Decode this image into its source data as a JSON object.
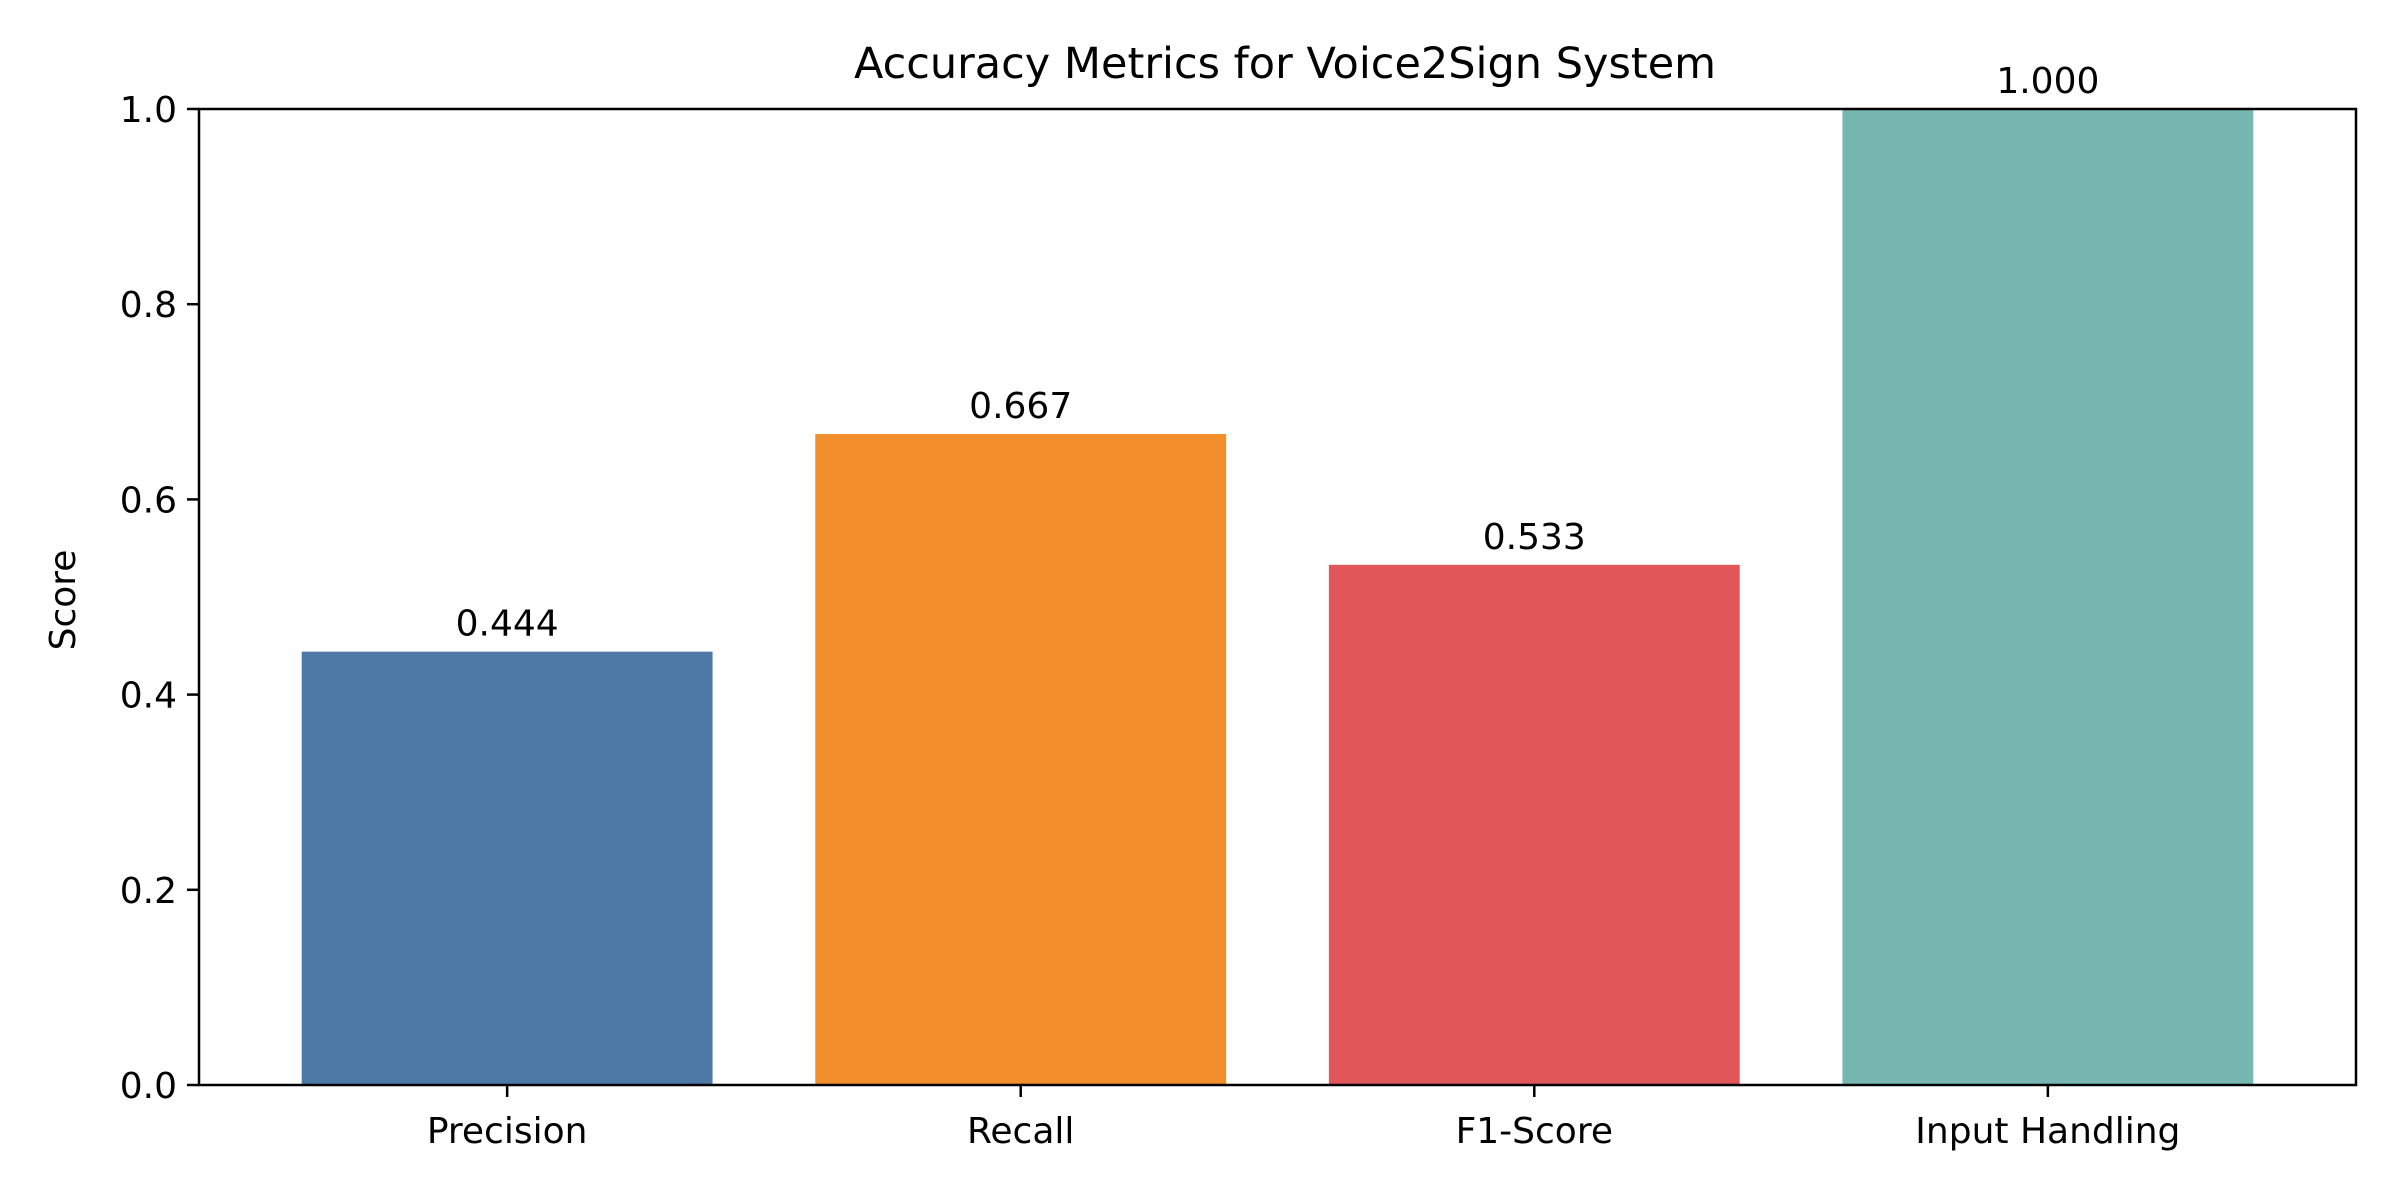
{
  "chart_data": {
    "type": "bar",
    "title": "Accuracy Metrics for Voice2Sign System",
    "xlabel": "",
    "ylabel": "Score",
    "categories": [
      "Precision",
      "Recall",
      "F1-Score",
      "Input Handling"
    ],
    "values": [
      0.444,
      0.667,
      0.533,
      1.0
    ],
    "value_labels": [
      "0.444",
      "0.667",
      "0.533",
      "1.000"
    ],
    "colors": [
      "#4e79a7",
      "#f28e2b",
      "#e15759",
      "#76b7b2"
    ],
    "ylim": [
      0,
      1.0
    ],
    "yticks": [
      0.0,
      0.2,
      0.4,
      0.6,
      0.8,
      1.0
    ],
    "ytick_labels": [
      "0.0",
      "0.2",
      "0.4",
      "0.6",
      "0.8",
      "1.0"
    ],
    "grid": false,
    "legend": "none"
  }
}
